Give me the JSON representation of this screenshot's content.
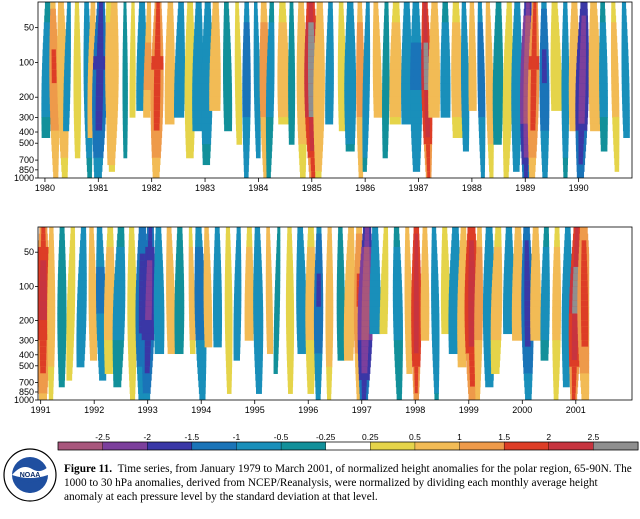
{
  "chart_data": [
    {
      "type": "heatmap",
      "x_ticks": [
        "1980",
        "1981",
        "1982",
        "1983",
        "1984",
        "1985",
        "1986",
        "1987",
        "1988",
        "1989",
        "1990"
      ],
      "x_range": [
        1979.87,
        1991.0
      ],
      "y_ticks": [
        "50",
        "100",
        "200",
        "300",
        "400",
        "500",
        "700",
        "850",
        "1000"
      ],
      "y_range_hPa": [
        1000,
        30
      ],
      "y_scale": "log",
      "events": [
        {
          "t": 1980.05,
          "v": -0.6
        },
        {
          "t": 1980.15,
          "v": 1.3
        },
        {
          "t": 1980.3,
          "v": 0.8
        },
        {
          "t": 1980.45,
          "v": -1.0
        },
        {
          "t": 1980.6,
          "v": 0.4
        },
        {
          "t": 1980.78,
          "v": -0.8
        },
        {
          "t": 1980.9,
          "v": 0.9
        },
        {
          "t": 1981.05,
          "v": -1.6
        },
        {
          "t": 1981.2,
          "v": 0.6
        },
        {
          "t": 1981.3,
          "v": 1.0
        },
        {
          "t": 1981.5,
          "v": -0.4
        },
        {
          "t": 1981.65,
          "v": 0.5
        },
        {
          "t": 1981.82,
          "v": -0.9
        },
        {
          "t": 1981.95,
          "v": 1.1
        },
        {
          "t": 1982.12,
          "v": 1.6
        },
        {
          "t": 1982.35,
          "v": 0.9
        },
        {
          "t": 1982.55,
          "v": -0.7
        },
        {
          "t": 1982.72,
          "v": 0.4
        },
        {
          "t": 1982.88,
          "v": -1.0
        },
        {
          "t": 1983.05,
          "v": -0.7
        },
        {
          "t": 1983.2,
          "v": 0.7
        },
        {
          "t": 1983.4,
          "v": -0.5
        },
        {
          "t": 1983.6,
          "v": 0.5
        },
        {
          "t": 1983.78,
          "v": -1.2
        },
        {
          "t": 1983.95,
          "v": -0.8
        },
        {
          "t": 1984.1,
          "v": 1.2
        },
        {
          "t": 1984.25,
          "v": -0.6
        },
        {
          "t": 1984.45,
          "v": 0.6
        },
        {
          "t": 1984.62,
          "v": -0.5
        },
        {
          "t": 1984.8,
          "v": 0.7
        },
        {
          "t": 1984.98,
          "v": 2.4
        },
        {
          "t": 1985.15,
          "v": 0.9
        },
        {
          "t": 1985.35,
          "v": -0.9
        },
        {
          "t": 1985.55,
          "v": 0.5
        },
        {
          "t": 1985.72,
          "v": -0.7
        },
        {
          "t": 1985.9,
          "v": 1.2
        },
        {
          "t": 1986.05,
          "v": -0.8
        },
        {
          "t": 1986.2,
          "v": 0.8
        },
        {
          "t": 1986.4,
          "v": -0.5
        },
        {
          "t": 1986.58,
          "v": 0.6
        },
        {
          "t": 1986.78,
          "v": -1.0
        },
        {
          "t": 1986.95,
          "v": -1.1
        },
        {
          "t": 1987.12,
          "v": 2.2
        },
        {
          "t": 1987.3,
          "v": 0.9
        },
        {
          "t": 1987.5,
          "v": -0.6
        },
        {
          "t": 1987.7,
          "v": 0.6
        },
        {
          "t": 1987.85,
          "v": -0.9
        },
        {
          "t": 1988.0,
          "v": 1.0
        },
        {
          "t": 1988.15,
          "v": -1.2
        },
        {
          "t": 1988.3,
          "v": 0.7
        },
        {
          "t": 1988.5,
          "v": -0.5
        },
        {
          "t": 1988.7,
          "v": 0.5
        },
        {
          "t": 1988.85,
          "v": -1.0
        },
        {
          "t": 1989.05,
          "v": -2.5
        },
        {
          "t": 1989.18,
          "v": 1.6
        },
        {
          "t": 1989.35,
          "v": -1.3
        },
        {
          "t": 1989.55,
          "v": 0.5
        },
        {
          "t": 1989.75,
          "v": -0.8
        },
        {
          "t": 1989.92,
          "v": 0.9
        },
        {
          "t": 1990.1,
          "v": -2.0
        },
        {
          "t": 1990.28,
          "v": 0.8
        },
        {
          "t": 1990.45,
          "v": -0.6
        },
        {
          "t": 1990.65,
          "v": 0.6
        },
        {
          "t": 1990.85,
          "v": -1.0
        }
      ]
    },
    {
      "type": "heatmap",
      "x_ticks": [
        "1991",
        "1992",
        "1993",
        "1994",
        "1995",
        "1996",
        "1997",
        "1998",
        "1999",
        "2000",
        "2001"
      ],
      "x_range": [
        1990.95,
        2002.05
      ],
      "data_end": 2001.25,
      "y_ticks": [
        "50",
        "100",
        "200",
        "300",
        "400",
        "500",
        "700",
        "850",
        "1000"
      ],
      "y_range_hPa": [
        1000,
        30
      ],
      "y_scale": "log",
      "events": [
        {
          "t": 1991.05,
          "v": 1.8
        },
        {
          "t": 1991.2,
          "v": 0.7
        },
        {
          "t": 1991.4,
          "v": -0.5
        },
        {
          "t": 1991.6,
          "v": 0.4
        },
        {
          "t": 1991.8,
          "v": -0.9
        },
        {
          "t": 1991.95,
          "v": 0.8
        },
        {
          "t": 1992.1,
          "v": -1.1
        },
        {
          "t": 1992.3,
          "v": 0.6
        },
        {
          "t": 1992.5,
          "v": -0.6
        },
        {
          "t": 1992.7,
          "v": 0.5
        },
        {
          "t": 1992.9,
          "v": -1.4
        },
        {
          "t": 1993.05,
          "v": -1.8
        },
        {
          "t": 1993.2,
          "v": -0.8
        },
        {
          "t": 1993.4,
          "v": 0.7
        },
        {
          "t": 1993.6,
          "v": -0.5
        },
        {
          "t": 1993.8,
          "v": 0.6
        },
        {
          "t": 1993.95,
          "v": -1.2
        },
        {
          "t": 1994.1,
          "v": 0.9
        },
        {
          "t": 1994.3,
          "v": -0.7
        },
        {
          "t": 1994.5,
          "v": 0.5
        },
        {
          "t": 1994.7,
          "v": -0.9
        },
        {
          "t": 1994.9,
          "v": 0.6
        },
        {
          "t": 1995.05,
          "v": -1.0
        },
        {
          "t": 1995.25,
          "v": 0.8
        },
        {
          "t": 1995.45,
          "v": -0.5
        },
        {
          "t": 1995.65,
          "v": 0.5
        },
        {
          "t": 1995.85,
          "v": -0.9
        },
        {
          "t": 1996.05,
          "v": 0.6
        },
        {
          "t": 1996.2,
          "v": -1.3
        },
        {
          "t": 1996.4,
          "v": 0.7
        },
        {
          "t": 1996.6,
          "v": -0.5
        },
        {
          "t": 1996.8,
          "v": 0.9
        },
        {
          "t": 1996.95,
          "v": 1.3
        },
        {
          "t": 1997.1,
          "v": -2.4
        },
        {
          "t": 1997.25,
          "v": -1.0
        },
        {
          "t": 1997.45,
          "v": 0.5
        },
        {
          "t": 1997.65,
          "v": -0.6
        },
        {
          "t": 1997.85,
          "v": 0.9
        },
        {
          "t": 1998.02,
          "v": 2.1
        },
        {
          "t": 1998.18,
          "v": 0.8
        },
        {
          "t": 1998.35,
          "v": -0.9
        },
        {
          "t": 1998.55,
          "v": 0.5
        },
        {
          "t": 1998.75,
          "v": -0.7
        },
        {
          "t": 1998.9,
          "v": 1.0
        },
        {
          "t": 1999.05,
          "v": 2.0
        },
        {
          "t": 1999.2,
          "v": 1.2
        },
        {
          "t": 1999.38,
          "v": -1.0
        },
        {
          "t": 1999.55,
          "v": 0.6
        },
        {
          "t": 1999.75,
          "v": -0.8
        },
        {
          "t": 1999.92,
          "v": 0.9
        },
        {
          "t": 2000.08,
          "v": -1.5
        },
        {
          "t": 2000.25,
          "v": 0.8
        },
        {
          "t": 2000.45,
          "v": -0.6
        },
        {
          "t": 2000.65,
          "v": 0.6
        },
        {
          "t": 2000.85,
          "v": -0.9
        },
        {
          "t": 2001.02,
          "v": 2.2
        },
        {
          "t": 2001.15,
          "v": 1.5
        }
      ]
    },
    {
      "type": "colorbar",
      "levels": [
        -3.0,
        -2.5,
        -2.0,
        -1.5,
        -1.0,
        -0.5,
        -0.25,
        0.25,
        0.5,
        1.0,
        1.5,
        2.0,
        2.5,
        3.0
      ],
      "tick_labels": [
        "-2.5",
        "-2",
        "-1.5",
        "-1",
        "-0.5",
        "-0.25",
        "0.25",
        "0.5",
        "1",
        "1.5",
        "2",
        "2.5"
      ],
      "colors": [
        "#a8567c",
        "#7c3f9c",
        "#3a37a6",
        "#1a74b8",
        "#198fba",
        "#12909a",
        "#ffffff",
        "#e5d44a",
        "#f2bb55",
        "#ee9a4a",
        "#dd3d26",
        "#c7343f",
        "#8f8f8f"
      ]
    }
  ],
  "logo": {
    "text": "NOAA"
  },
  "caption": {
    "label": "Figure 11.",
    "text": "Time series, from January 1979 to March 2001, of normalized height anomalies for the polar region, 65-90N.  The 1000 to 30 hPa anomalies, derived from NCEP/Reanalysis, were normalized by dividing each monthly average height anomaly at each pressure level by the standard deviation at that level."
  }
}
